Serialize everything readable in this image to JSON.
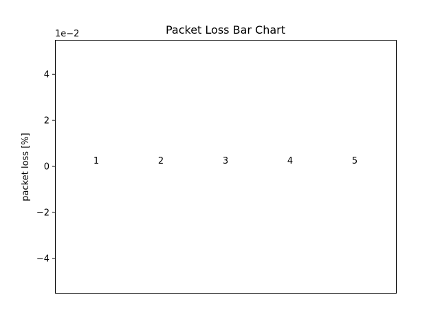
{
  "chart_data": {
    "type": "bar",
    "title": "Packet Loss Bar Chart",
    "xlabel": "",
    "ylabel": "packet loss [%]",
    "y_offset_label": "1e−2",
    "y_tick_scale": 0.01,
    "categories": [
      "1",
      "2",
      "3",
      "4",
      "5"
    ],
    "values": [
      0,
      0,
      0,
      0,
      0
    ],
    "bar_labels": [
      "1",
      "2",
      "3",
      "4",
      "5"
    ],
    "ylim": [
      -0.055,
      0.055
    ],
    "y_ticks": [
      -0.04,
      -0.02,
      0,
      0.02,
      0.04
    ],
    "y_tick_labels": [
      "−4",
      "−2",
      "0",
      "2",
      "4"
    ],
    "x_ticks_visible": false,
    "grid": false,
    "legend": "none"
  }
}
